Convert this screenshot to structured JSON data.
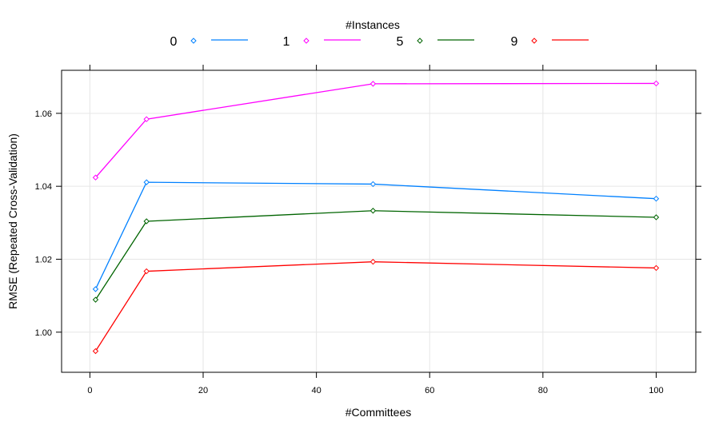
{
  "chart_data": {
    "type": "line",
    "title": "",
    "xlabel": "#Committees",
    "ylabel": "RMSE (Repeated Cross-Validation)",
    "xlim": [
      -5,
      107
    ],
    "ylim": [
      0.989,
      1.0718
    ],
    "x_ticks": [
      0,
      20,
      40,
      60,
      80,
      100
    ],
    "x_tick_labels": [
      "0",
      "20",
      "40",
      "60",
      "80",
      "100"
    ],
    "y_ticks": [
      1.0,
      1.02,
      1.04,
      1.06
    ],
    "y_tick_labels": [
      "1.00",
      "1.02",
      "1.04",
      "1.06"
    ],
    "grid": true,
    "legend": {
      "title": "#Instances",
      "placement": "top"
    },
    "x": [
      1,
      10,
      50,
      100
    ],
    "series": [
      {
        "name": "0",
        "color": "#0080ff",
        "values": [
          1.0118,
          1.0411,
          1.0406,
          1.0366
        ]
      },
      {
        "name": "1",
        "color": "#ff00ff",
        "values": [
          1.0424,
          1.0584,
          1.0681,
          1.0682
        ]
      },
      {
        "name": "5",
        "color": "#006400",
        "values": [
          1.0089,
          1.0304,
          1.0333,
          1.0315
        ]
      },
      {
        "name": "9",
        "color": "#ff0000",
        "values": [
          0.9948,
          1.0167,
          1.0193,
          1.0176
        ]
      }
    ]
  }
}
